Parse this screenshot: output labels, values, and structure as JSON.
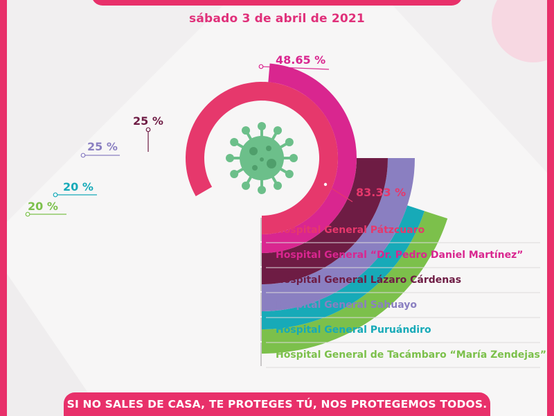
{
  "date": "sábado 3 de abril de 2021",
  "footer_text": "SI NO SALES DE CASA, TE PROTEGES TÚ, NOS PROTEGEMOS TODOS.",
  "icon": "virus-icon",
  "colors": {
    "accent": "#e8306a",
    "Hospital General Pátzcuaro": "#e6386c",
    "Hospital General “Dr. Pedro Daniel Martínez”": "#d9268f",
    "Hospital General Lázaro Cárdenas": "#6e1c44",
    "Hospital General Sahuayo": "#8a7fc1",
    "Hospital General Puruándiro": "#17aab8",
    "Hospital General de Tacámbaro “María Zendejas”": "#7cc04b"
  },
  "chart_data": {
    "type": "radial-bar",
    "categories": [
      "Hospital General Pátzcuaro",
      "Hospital General “Dr. Pedro Daniel Martínez”",
      "Hospital General Lázaro Cárdenas",
      "Hospital General Sahuayo",
      "Hospital General Puruándiro",
      "Hospital General de Tacámbaro “María Zendejas”"
    ],
    "values": [
      83.33,
      48.65,
      25,
      25,
      20,
      20
    ],
    "labels": [
      "83.33 %",
      "48.65 %",
      "25 %",
      "25 %",
      "20 %",
      "20 %"
    ],
    "unit": "%"
  }
}
